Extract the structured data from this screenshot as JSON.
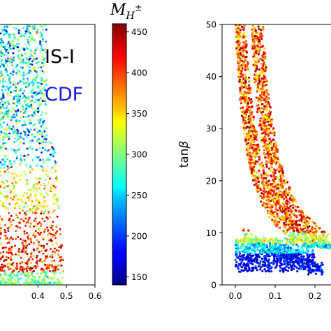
{
  "chart_data": [
    {
      "type": "scatter",
      "panel": "left",
      "xlim": [
        0.0,
        0.6
      ],
      "x_ticks": [
        "0.4",
        "0.5",
        "0.6"
      ],
      "x_tick_values": [
        0.4,
        0.5,
        0.6
      ],
      "annotations": [
        {
          "text": "IS-I",
          "color": "#000000"
        },
        {
          "text": "CDF",
          "color": "#1a1adf"
        }
      ],
      "color_variable": "M_H±",
      "points_summary": {
        "x_extent": [
          0.0,
          0.49
        ],
        "description": "dense cloud of points; red/orange (high M_H±) concentrated near bottom, green/cyan above, sparse scatter toward top"
      },
      "grid": false
    },
    {
      "type": "colorbar",
      "label_main": "M",
      "label_sub": "H",
      "label_sup": "±",
      "range": [
        140,
        460
      ],
      "tick_labels": [
        "450",
        "400",
        "350",
        "300",
        "250",
        "200",
        "150"
      ],
      "tick_values": [
        450,
        400,
        350,
        300,
        250,
        200,
        150
      ],
      "colormap": "jet"
    },
    {
      "type": "scatter",
      "panel": "right",
      "ylabel_main": "tan",
      "ylabel_greek": "β",
      "xlim": [
        -0.05,
        0.3
      ],
      "ylim": [
        0,
        50
      ],
      "x_ticks": [
        "0.0",
        "0.1",
        "0.2"
      ],
      "x_tick_values": [
        0.0,
        0.1,
        0.2
      ],
      "y_ticks": [
        "0",
        "10",
        "20",
        "30",
        "40",
        "50"
      ],
      "y_tick_values": [
        0,
        10,
        20,
        30,
        40,
        50
      ],
      "bands": [
        {
          "name": "",
          "x_range": [
            0.0,
            0.3
          ],
          "tanb_range": [
            4,
            50
          ],
          "trend": "tanβ decreases as x increases, starting near x≈0.00"
        },
        {
          "name": "",
          "x_range": [
            0.04,
            0.3
          ],
          "tanb_range": [
            6,
            50
          ],
          "trend": "tanβ decreases as x increases, starting near x≈0.04"
        }
      ],
      "low_region": {
        "tanb_range": [
          2,
          9
        ],
        "x_range": [
          0.0,
          0.22
        ],
        "color_level": "low M_H± (blue)"
      },
      "grid": false
    }
  ]
}
